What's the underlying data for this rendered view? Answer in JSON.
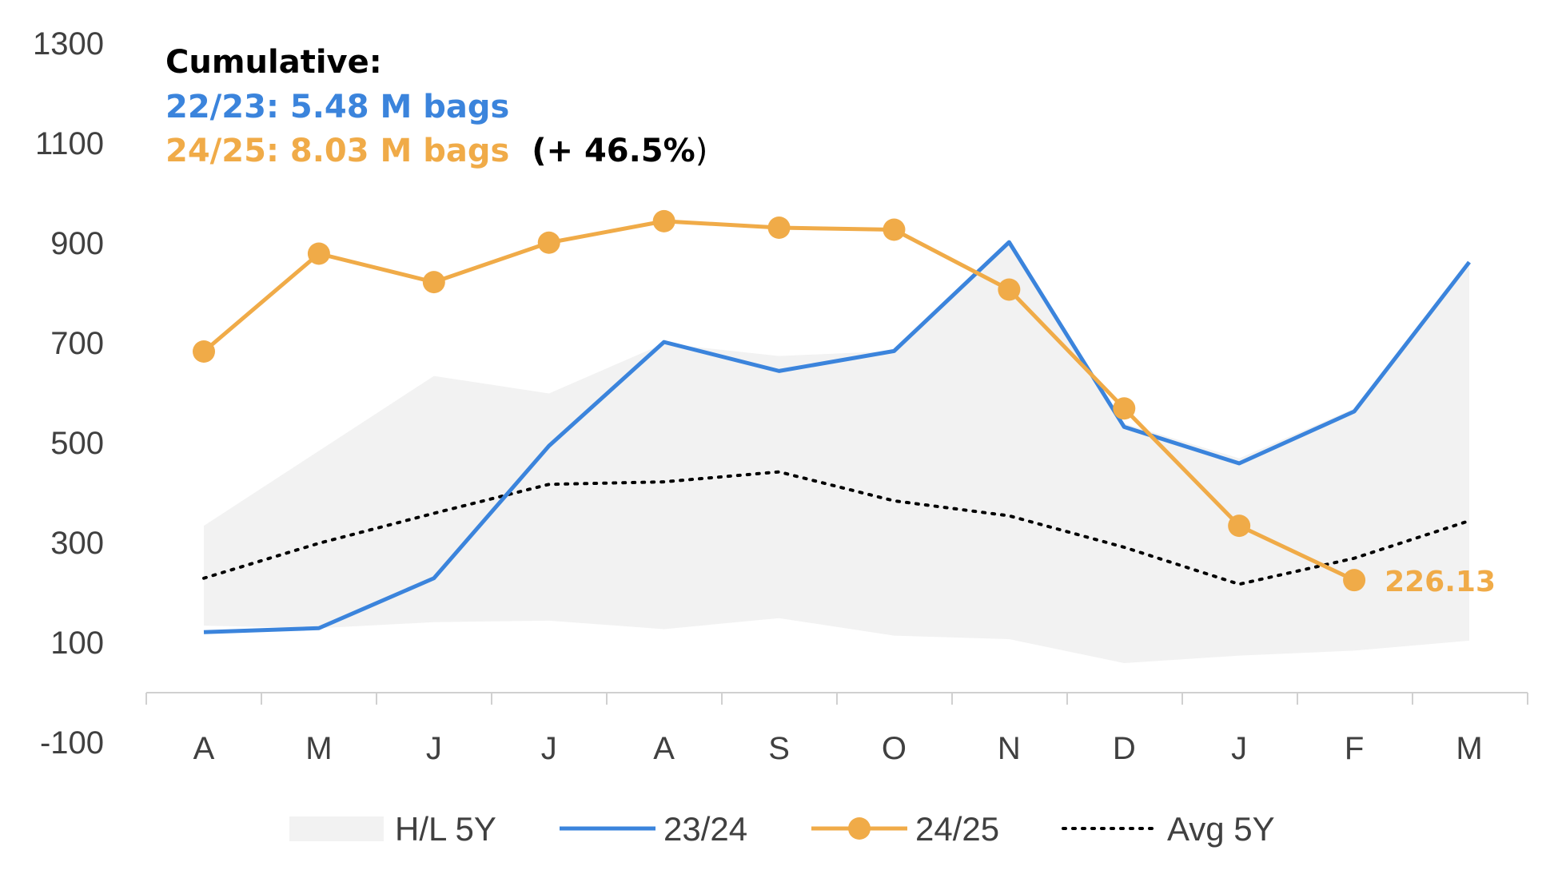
{
  "chart_data": {
    "type": "line",
    "categories": [
      "A",
      "M",
      "J",
      "J",
      "A",
      "S",
      "O",
      "N",
      "D",
      "J",
      "F",
      "M"
    ],
    "ylim": [
      -100,
      1300
    ],
    "yticks": [
      "1300",
      "1100",
      "900",
      "700",
      "500",
      "300",
      "100",
      "-100"
    ],
    "grid": false,
    "legend_position": "bottom",
    "band": {
      "name": "H/L 5Y",
      "color": "#f2f2f2",
      "high": [
        335,
        485,
        635,
        600,
        700,
        675,
        685,
        905,
        540,
        470,
        570,
        855
      ],
      "low": [
        135,
        130,
        142,
        145,
        128,
        150,
        115,
        108,
        60,
        75,
        85,
        105
      ]
    },
    "series": [
      {
        "name": "23/24",
        "color": "#3b84dc",
        "values": [
          122,
          130,
          230,
          495,
          703,
          645,
          685,
          903,
          533,
          460,
          564,
          863
        ]
      },
      {
        "name": "24/25",
        "color": "#f0ab48",
        "markers": true,
        "values": [
          684,
          880,
          823,
          902,
          945,
          932,
          928,
          808,
          570,
          335,
          226.13,
          null
        ]
      },
      {
        "name": "Avg 5Y",
        "color": "#000000",
        "dotted": true,
        "values": [
          230,
          300,
          360,
          418,
          423,
          443,
          385,
          355,
          292,
          218,
          270,
          345
        ]
      }
    ],
    "last_value_label": "226.13",
    "annotation": {
      "heading": "Cumulative:",
      "line1": "22/23: 5.48 M bags",
      "line2": "24/25: 8.03 M bags",
      "line2_suffix": "(+ 46.5%",
      "line2_paren": ")"
    }
  }
}
